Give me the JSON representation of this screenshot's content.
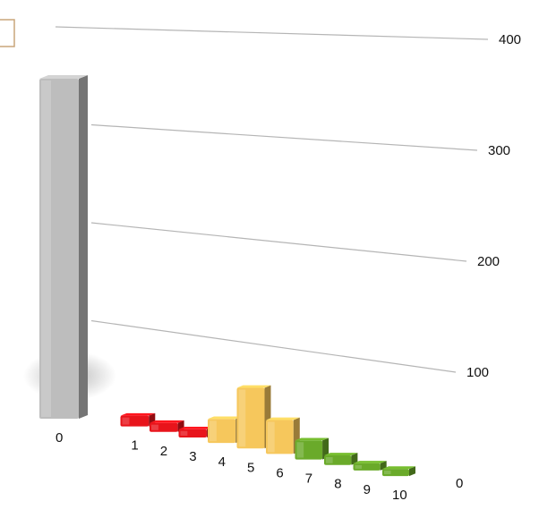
{
  "chart_data": {
    "type": "bar",
    "categories": [
      "0",
      "1",
      "2",
      "3",
      "4",
      "5",
      "6",
      "7",
      "8",
      "9",
      "10"
    ],
    "values": [
      385,
      12,
      10,
      9,
      26,
      65,
      36,
      20,
      10,
      6,
      4
    ],
    "ylim": [
      0,
      400
    ],
    "yticks": [
      "0",
      "100",
      "200",
      "300",
      "400"
    ],
    "grid": true,
    "legend": "none",
    "colors": {
      "gray": "#bdbdbd",
      "red": "#e8141b",
      "yellow": "#f6c75c",
      "green": "#6aaa2a"
    },
    "bar_colors": [
      "gray",
      "red",
      "red",
      "red",
      "yellow",
      "yellow",
      "yellow",
      "green",
      "green",
      "green",
      "green"
    ]
  }
}
